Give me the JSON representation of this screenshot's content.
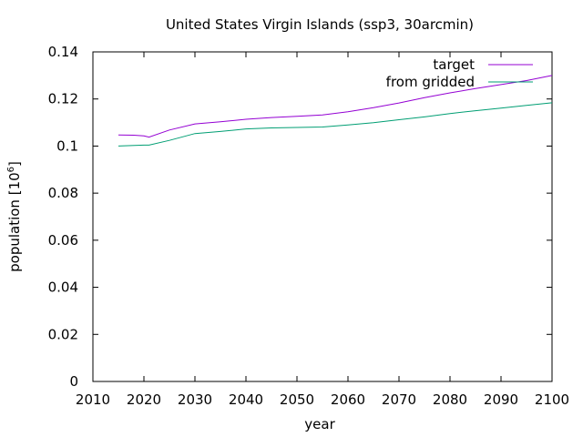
{
  "chart_data": {
    "type": "line",
    "title": "United States Virgin Islands (ssp3, 30arcmin)",
    "xlabel": "year",
    "ylabel_base": "population [10",
    "ylabel_exp": "6",
    "ylabel_close": "]",
    "xlim": [
      2010,
      2100
    ],
    "ylim": [
      0,
      0.14
    ],
    "xticks": [
      2010,
      2020,
      2030,
      2040,
      2050,
      2060,
      2070,
      2080,
      2090,
      2100
    ],
    "xtick_labels": [
      "2010",
      "2020",
      "2030",
      "2040",
      "2050",
      "2060",
      "2070",
      "2080",
      "2090",
      "2100"
    ],
    "yticks": [
      0,
      0.02,
      0.04,
      0.06,
      0.08,
      0.1,
      0.12,
      0.14
    ],
    "ytick_labels": [
      "0",
      "0.02",
      "0.04",
      "0.06",
      "0.08",
      "0.1",
      "0.12",
      "0.14"
    ],
    "legend_position": "top-right",
    "grid": false,
    "series": [
      {
        "name": "target",
        "color": "#9400d3",
        "x": [
          2015,
          2018,
          2020,
          2021,
          2025,
          2030,
          2035,
          2040,
          2045,
          2050,
          2055,
          2060,
          2065,
          2070,
          2075,
          2080,
          2085,
          2090,
          2095,
          2100
        ],
        "y": [
          0.1047,
          0.1046,
          0.1043,
          0.1038,
          0.1068,
          0.1094,
          0.1103,
          0.1114,
          0.1121,
          0.1126,
          0.1132,
          0.1146,
          0.1163,
          0.1183,
          0.1206,
          0.1226,
          0.1244,
          0.1261,
          0.1278,
          0.13
        ]
      },
      {
        "name": "from gridded",
        "color": "#009e73",
        "x": [
          2015,
          2020,
          2021,
          2025,
          2030,
          2035,
          2040,
          2045,
          2050,
          2055,
          2060,
          2065,
          2070,
          2075,
          2080,
          2085,
          2090,
          2095,
          2100
        ],
        "y": [
          0.1,
          0.1004,
          0.1004,
          0.1024,
          0.1053,
          0.1062,
          0.1073,
          0.1077,
          0.1079,
          0.1081,
          0.109,
          0.1099,
          0.1112,
          0.1124,
          0.1138,
          0.115,
          0.1161,
          0.1173,
          0.1184
        ]
      }
    ]
  }
}
